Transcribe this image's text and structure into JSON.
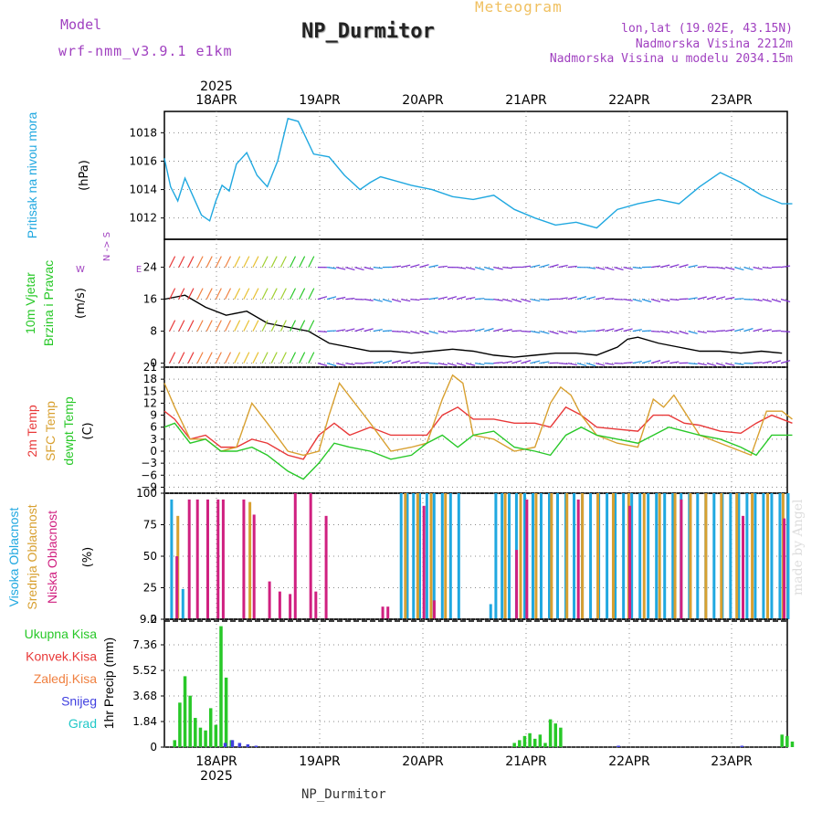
{
  "header": {
    "model_label": "Model",
    "model_name": "wrf-nmm_v3.9.1 e1km",
    "station": "NP_Durmitor",
    "product": "Meteogram",
    "lonlat": "lon,lat (19.02E, 43.15N)",
    "altitude": "Nadmorska Visina 2212m",
    "model_altitude": "Nadmorska Visina u modelu 2034.15m",
    "credit": "made by Angel",
    "footer_station": "NP_Durmitor"
  },
  "time_axis": {
    "year": "2025",
    "days": [
      "18APR",
      "19APR",
      "20APR",
      "21APR",
      "22APR",
      "23APR"
    ]
  },
  "chart_data": [
    {
      "type": "line",
      "title": "",
      "ylabel": "Pritisak na nivou mora",
      "unit": "(hPa)",
      "yticks": [
        "1012",
        "1014",
        "1016",
        "1018"
      ],
      "ylim": [
        1010.5,
        1019.5
      ],
      "series": [
        {
          "name": "MSLP",
          "color": "#20a8e0",
          "x": [
            0,
            0.06,
            0.13,
            0.2,
            0.28,
            0.36,
            0.44,
            0.5,
            0.56,
            0.63,
            0.7,
            0.8,
            0.9,
            1.0,
            1.1,
            1.2,
            1.3,
            1.45,
            1.6,
            1.75,
            1.9,
            2.0,
            2.1,
            2.25,
            2.4,
            2.6,
            2.8,
            3.0,
            3.2,
            3.4,
            3.6,
            3.8,
            4.0,
            4.2,
            4.4,
            4.6,
            4.8,
            5.0,
            5.2,
            5.4,
            5.6,
            5.8,
            6.0,
            6.1
          ],
          "y": [
            1016.2,
            1014.2,
            1013.2,
            1014.8,
            1013.5,
            1012.2,
            1011.8,
            1013.2,
            1014.3,
            1013.9,
            1015.8,
            1016.6,
            1015.0,
            1014.2,
            1016.0,
            1019.0,
            1018.8,
            1016.5,
            1016.3,
            1015.0,
            1014.0,
            1014.5,
            1014.9,
            1014.6,
            1014.3,
            1014.0,
            1013.5,
            1013.3,
            1013.6,
            1012.6,
            1012.0,
            1011.5,
            1011.7,
            1011.3,
            1012.6,
            1013.0,
            1013.3,
            1013.0,
            1014.2,
            1015.2,
            1014.5,
            1013.6,
            1013.0,
            1013.0
          ]
        }
      ]
    },
    {
      "type": "line",
      "title": "",
      "ylabel": "10m Vjetar / Brzina i Pravac",
      "unit": "(m/s)",
      "yticks": [
        "0",
        "8",
        "16",
        "24"
      ],
      "ylim": [
        -1,
        31
      ],
      "compass": {
        "n": "N",
        "s": "S",
        "e": "E",
        "w": "W"
      },
      "series": [
        {
          "name": "Wind speed",
          "color": "#000000",
          "x": [
            0,
            0.2,
            0.4,
            0.6,
            0.8,
            1.0,
            1.2,
            1.4,
            1.6,
            1.8,
            2.0,
            2.2,
            2.4,
            2.6,
            2.8,
            3.0,
            3.2,
            3.4,
            3.6,
            3.8,
            4.0,
            4.2,
            4.4,
            4.5,
            4.6,
            4.8,
            5.0,
            5.2,
            5.4,
            5.6,
            5.8,
            6.0
          ],
          "y": [
            16,
            17,
            14,
            12,
            13,
            10,
            9,
            8,
            5,
            4,
            3,
            3,
            2.5,
            3,
            3.5,
            3,
            2,
            1.5,
            2,
            2.5,
            2.5,
            2,
            4,
            6,
            6.5,
            5,
            4,
            3,
            3,
            2.5,
            3,
            2.5
          ]
        }
      ]
    },
    {
      "type": "line",
      "title": "",
      "ylabel": "2m Temp / SFC Temp / dewpt Temp",
      "unit": "(C)",
      "yticks": [
        "−9",
        "−6",
        "−3",
        "0",
        "3",
        "6",
        "9",
        "12",
        "15",
        "18",
        "21"
      ],
      "ylim": [
        -10.5,
        21
      ],
      "series": [
        {
          "name": "2m Temp",
          "color": "#e83838",
          "x": [
            0,
            0.1,
            0.25,
            0.4,
            0.55,
            0.7,
            0.85,
            1.0,
            1.2,
            1.35,
            1.5,
            1.65,
            1.8,
            2.0,
            2.2,
            2.4,
            2.55,
            2.7,
            2.85,
            3.0,
            3.2,
            3.4,
            3.6,
            3.75,
            3.9,
            4.05,
            4.2,
            4.4,
            4.6,
            4.75,
            4.9,
            5.05,
            5.2,
            5.4,
            5.6,
            5.75,
            5.9,
            6.1
          ],
          "y": [
            10,
            8,
            3,
            4,
            1,
            1,
            3,
            2,
            -1,
            -2,
            4,
            7,
            4,
            6,
            4,
            4,
            4,
            9,
            11,
            8,
            8,
            7,
            7,
            6,
            11,
            9,
            6,
            5.5,
            5,
            9,
            9,
            7,
            6.5,
            5,
            4.5,
            7,
            9,
            7
          ]
        },
        {
          "name": "SFC Temp",
          "color": "#d8a030",
          "x": [
            0,
            0.1,
            0.25,
            0.4,
            0.55,
            0.7,
            0.85,
            1.0,
            1.2,
            1.35,
            1.5,
            1.6,
            1.7,
            1.85,
            2.0,
            2.2,
            2.4,
            2.55,
            2.7,
            2.8,
            2.9,
            3.0,
            3.2,
            3.4,
            3.6,
            3.75,
            3.85,
            3.95,
            4.05,
            4.2,
            4.4,
            4.6,
            4.75,
            4.85,
            4.95,
            5.05,
            5.2,
            5.4,
            5.6,
            5.7,
            5.85,
            6.0,
            6.1
          ],
          "y": [
            17,
            11,
            3,
            3,
            0,
            1,
            12,
            7,
            0,
            -1,
            0,
            9,
            17,
            12,
            7,
            0,
            1,
            2,
            13,
            19,
            17,
            4,
            3,
            0,
            1,
            12,
            16,
            14,
            9,
            4,
            2,
            1,
            13,
            11,
            14,
            10,
            4,
            2,
            0,
            -1,
            10,
            10,
            8
          ]
        },
        {
          "name": "dewpt Temp",
          "color": "#28c828",
          "x": [
            0,
            0.1,
            0.25,
            0.4,
            0.55,
            0.7,
            0.85,
            1.0,
            1.2,
            1.35,
            1.5,
            1.65,
            1.8,
            2.0,
            2.2,
            2.4,
            2.55,
            2.7,
            2.85,
            3.0,
            3.2,
            3.4,
            3.6,
            3.75,
            3.9,
            4.05,
            4.2,
            4.4,
            4.6,
            4.75,
            4.9,
            5.05,
            5.2,
            5.4,
            5.6,
            5.75,
            5.9,
            6.1
          ],
          "y": [
            6,
            7,
            2,
            3,
            0,
            0,
            1,
            -1,
            -5,
            -7,
            -3,
            2,
            1,
            0,
            -2,
            -1,
            2,
            4,
            1,
            4,
            5,
            1,
            0,
            -1,
            4,
            6,
            4,
            3,
            2,
            4,
            6,
            5,
            4,
            3,
            1,
            -1,
            4,
            4
          ]
        }
      ]
    },
    {
      "type": "bar",
      "title": "",
      "ylabel": "Visoka Oblacnost / Srednja Oblacnost / Niska Oblacnost",
      "unit": "(%)",
      "yticks": [
        "0",
        "25",
        "50",
        "75",
        "100"
      ],
      "ylim": [
        0,
        100
      ],
      "series": [
        {
          "name": "Visoka Oblacnost",
          "color": "#20a8e0",
          "x": [
            0.07,
            0.18,
            2.3,
            2.36,
            2.42,
            2.48,
            2.55,
            2.62,
            2.7,
            2.78,
            2.86,
            3.17,
            3.22,
            3.28,
            3.35,
            3.42,
            3.5,
            3.58,
            3.66,
            3.74,
            3.82,
            3.9,
            3.98,
            4.06,
            4.14,
            4.22,
            4.3,
            4.38,
            4.46,
            4.54,
            4.62,
            4.7,
            4.78,
            4.86,
            4.94,
            5.02,
            5.1,
            5.18,
            5.26,
            5.34,
            5.42,
            5.5,
            5.58,
            5.66,
            5.74,
            5.82,
            5.9,
            5.98,
            6.06
          ],
          "values": [
            95,
            24,
            100,
            100,
            100,
            100,
            100,
            100,
            100,
            100,
            100,
            12,
            100,
            100,
            100,
            100,
            100,
            100,
            100,
            100,
            100,
            100,
            100,
            100,
            100,
            100,
            100,
            100,
            100,
            100,
            100,
            100,
            100,
            100,
            100,
            100,
            100,
            100,
            100,
            100,
            100,
            100,
            100,
            100,
            100,
            100,
            100,
            100,
            100
          ]
        },
        {
          "name": "Srednja Oblacnost",
          "color": "#d8a030",
          "x": [
            0.12,
            0.82,
            2.33,
            2.45,
            2.58,
            2.72,
            3.3,
            3.45,
            3.6,
            3.75,
            3.9,
            4.05,
            4.2,
            4.35,
            4.5,
            4.65,
            4.8,
            4.95,
            5.1,
            5.25,
            5.4,
            5.55,
            5.7,
            5.85,
            6.0
          ],
          "values": [
            82,
            93,
            100,
            100,
            100,
            100,
            100,
            100,
            100,
            100,
            100,
            100,
            100,
            100,
            100,
            100,
            100,
            100,
            100,
            100,
            100,
            100,
            100,
            100,
            100
          ]
        },
        {
          "name": "Niska Oblacnost",
          "color": "#d02080",
          "x": [
            0.1,
            0.22,
            0.3,
            0.4,
            0.5,
            0.55,
            0.75,
            0.85,
            1.0,
            1.1,
            1.2,
            1.25,
            1.4,
            1.45,
            1.55,
            2.1,
            2.15,
            2.5,
            2.6,
            3.4,
            3.5,
            4.0,
            4.5,
            5.0,
            5.6,
            6.0
          ],
          "values": [
            50,
            95,
            95,
            95,
            95,
            95,
            95,
            83,
            30,
            22,
            20,
            100,
            100,
            22,
            82,
            10,
            10,
            90,
            15,
            55,
            95,
            95,
            90,
            95,
            82,
            80
          ]
        }
      ]
    },
    {
      "type": "bar",
      "title": "",
      "ylabel": "1hr Precip",
      "unit": "(mm)",
      "yticks": [
        "0",
        "1.84",
        "3.68",
        "5.52",
        "7.36",
        "9.2"
      ],
      "ylim": [
        0,
        9.2
      ],
      "legend": [
        "Ukupna Kisa",
        "Konvek.Kisa",
        "Zaledj.Kisa",
        "Snijeg",
        "Grad"
      ],
      "legend_colors": [
        "#28c828",
        "#e83838",
        "#f08040",
        "#4040e0",
        "#20c8c8"
      ],
      "series": [
        {
          "name": "Ukupna Kisa",
          "color": "#28c828",
          "x": [
            0.1,
            0.15,
            0.2,
            0.25,
            0.3,
            0.35,
            0.4,
            0.45,
            0.5,
            0.55,
            0.6,
            0.65,
            3.4,
            3.45,
            3.5,
            3.55,
            3.6,
            3.65,
            3.7,
            3.75,
            3.8,
            3.85,
            6.0,
            6.05,
            6.1
          ],
          "values": [
            0.5,
            3.2,
            5.1,
            3.7,
            2.1,
            1.4,
            1.2,
            2.8,
            1.6,
            8.7,
            5.0,
            0.5,
            0.3,
            0.5,
            0.8,
            1.0,
            0.6,
            0.9,
            0.3,
            2.0,
            1.7,
            1.4,
            0.9,
            0.8,
            0.4
          ]
        },
        {
          "name": "Snijeg",
          "color": "#4040e0",
          "x": [
            0.58,
            0.65,
            0.72,
            0.8,
            0.88,
            4.4,
            5.6
          ],
          "values": [
            0.3,
            0.5,
            0.3,
            0.2,
            0.1,
            0.1,
            0.1
          ]
        }
      ]
    }
  ]
}
